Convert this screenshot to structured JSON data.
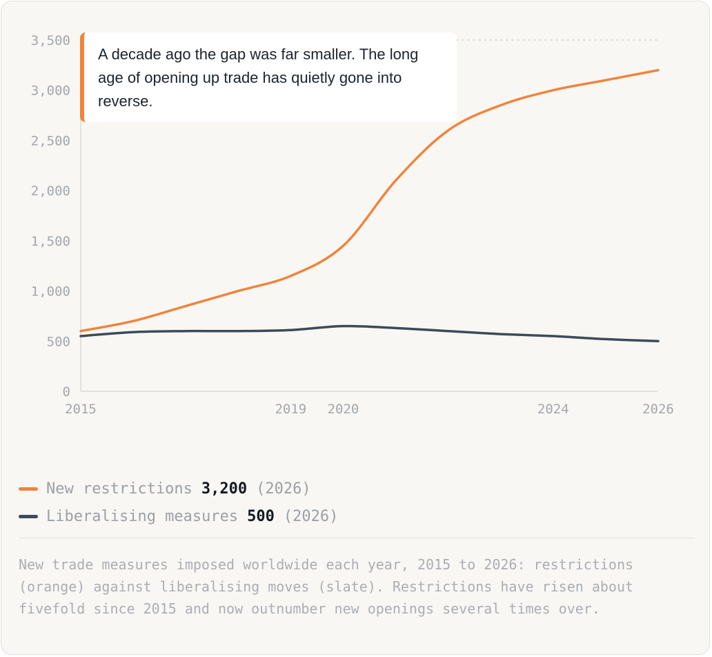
{
  "annotation": {
    "text": "A decade ago the gap was far smaller. The long age of opening up trade has quietly gone into reverse."
  },
  "legend": [
    {
      "name": "New restrictions",
      "value": "3,200",
      "year": "(2026)",
      "color": "#f0843c"
    },
    {
      "name": "Liberalising measures",
      "value": "500",
      "year": "(2026)",
      "color": "#3d4b58"
    }
  ],
  "caption": "New trade measures imposed worldwide each year, 2015 to 2026: restrictions (orange) against liberalising moves (slate). Restrictions have risen about fivefold since 2015 and now outnumber new openings several times over.",
  "chart_data": {
    "type": "line",
    "title": "",
    "xlabel": "",
    "ylabel": "",
    "xlim": [
      2015,
      2026
    ],
    "ylim": [
      0,
      3500
    ],
    "x_ticks": [
      "2015",
      "2019",
      "2020",
      "2024",
      "2026"
    ],
    "y_ticks": [
      "0",
      "500",
      "1,000",
      "1,500",
      "2,000",
      "2,500",
      "3,000",
      "3,500"
    ],
    "grid": false,
    "series": [
      {
        "name": "New restrictions",
        "color": "#f0843c",
        "points": [
          [
            2015,
            600
          ],
          [
            2016,
            700
          ],
          [
            2017,
            850
          ],
          [
            2018,
            1000
          ],
          [
            2019,
            1150
          ],
          [
            2020,
            1450
          ],
          [
            2021,
            2100
          ],
          [
            2022,
            2600
          ],
          [
            2023,
            2850
          ],
          [
            2024,
            3000
          ],
          [
            2025,
            3100
          ],
          [
            2026,
            3200
          ]
        ]
      },
      {
        "name": "Liberalising measures",
        "color": "#3d4b58",
        "points": [
          [
            2015,
            550
          ],
          [
            2016,
            590
          ],
          [
            2017,
            600
          ],
          [
            2018,
            600
          ],
          [
            2019,
            610
          ],
          [
            2020,
            650
          ],
          [
            2021,
            630
          ],
          [
            2022,
            600
          ],
          [
            2023,
            570
          ],
          [
            2024,
            550
          ],
          [
            2025,
            520
          ],
          [
            2026,
            500
          ]
        ]
      }
    ]
  }
}
